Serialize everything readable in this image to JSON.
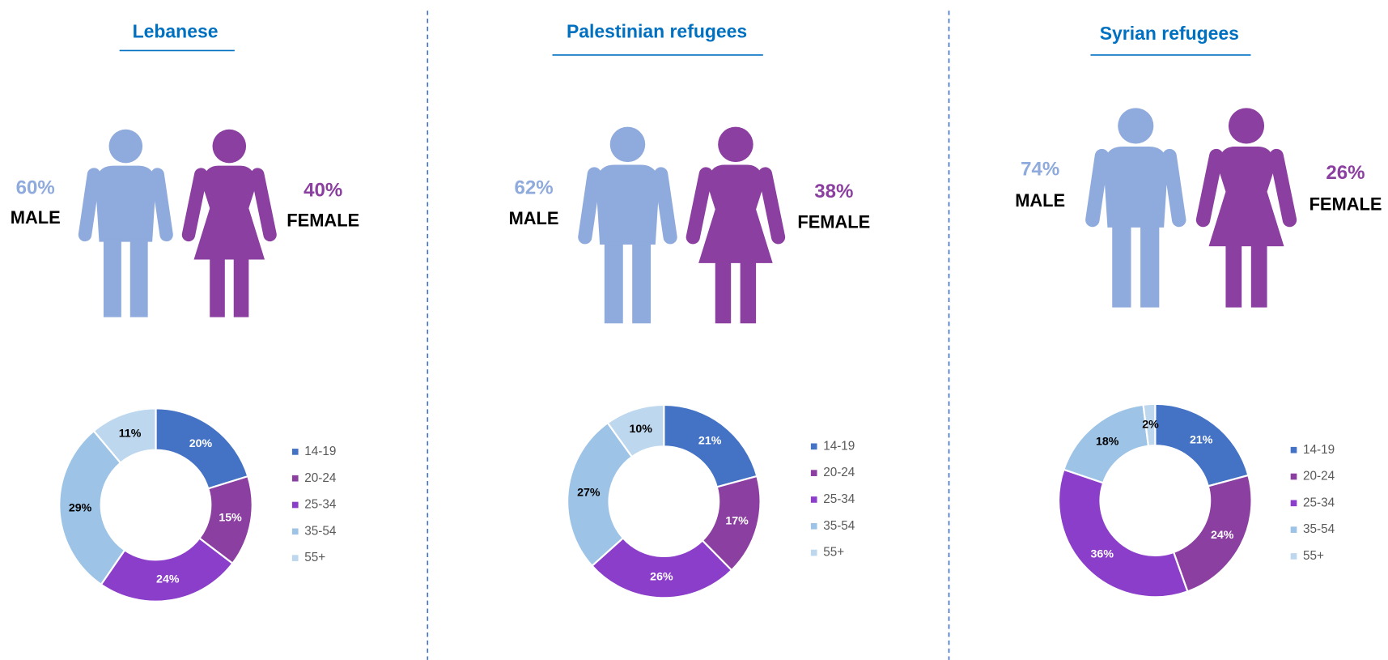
{
  "chart_data": [
    {
      "type": "donut",
      "title": "Lebanese",
      "gender": {
        "categories": [
          "MALE",
          "FEMALE"
        ],
        "values": [
          60,
          40
        ],
        "value_labels": [
          "60%",
          "40%"
        ],
        "colors": [
          "#8faadc",
          "#8b3fa0"
        ]
      },
      "categories": [
        "14-19",
        "20-24",
        "25-34",
        "35-54",
        "55+"
      ],
      "values": [
        20,
        15,
        24,
        29,
        11
      ],
      "value_labels": [
        "20%",
        "15%",
        "24%",
        "29%",
        "11%"
      ],
      "colors": [
        "#4472c4",
        "#8b3fa0",
        "#8b3ec9",
        "#9dc3e6",
        "#bdd7ee"
      ]
    },
    {
      "type": "donut",
      "title": "Palestinian refugees",
      "gender": {
        "categories": [
          "MALE",
          "FEMALE"
        ],
        "values": [
          62,
          38
        ],
        "value_labels": [
          "62%",
          "38%"
        ],
        "colors": [
          "#8faadc",
          "#8b3fa0"
        ]
      },
      "categories": [
        "14-19",
        "20-24",
        "25-34",
        "35-54",
        "55+"
      ],
      "values": [
        21,
        17,
        26,
        27,
        10
      ],
      "value_labels": [
        "21%",
        "17%",
        "26%",
        "27%",
        "10%"
      ],
      "colors": [
        "#4472c4",
        "#8b3fa0",
        "#8b3ec9",
        "#9dc3e6",
        "#bdd7ee"
      ]
    },
    {
      "type": "donut",
      "title": "Syrian refugees",
      "gender": {
        "categories": [
          "MALE",
          "FEMALE"
        ],
        "values": [
          74,
          26
        ],
        "value_labels": [
          "74%",
          "26%"
        ],
        "colors": [
          "#8faadc",
          "#8b3fa0"
        ]
      },
      "categories": [
        "14-19",
        "20-24",
        "25-34",
        "35-54",
        "55+"
      ],
      "values": [
        21,
        24,
        36,
        18,
        2
      ],
      "value_labels": [
        "21%",
        "24%",
        "36%",
        "18%",
        "2%"
      ],
      "colors": [
        "#4472c4",
        "#8b3fa0",
        "#8b3ec9",
        "#9dc3e6",
        "#bdd7ee"
      ]
    }
  ]
}
